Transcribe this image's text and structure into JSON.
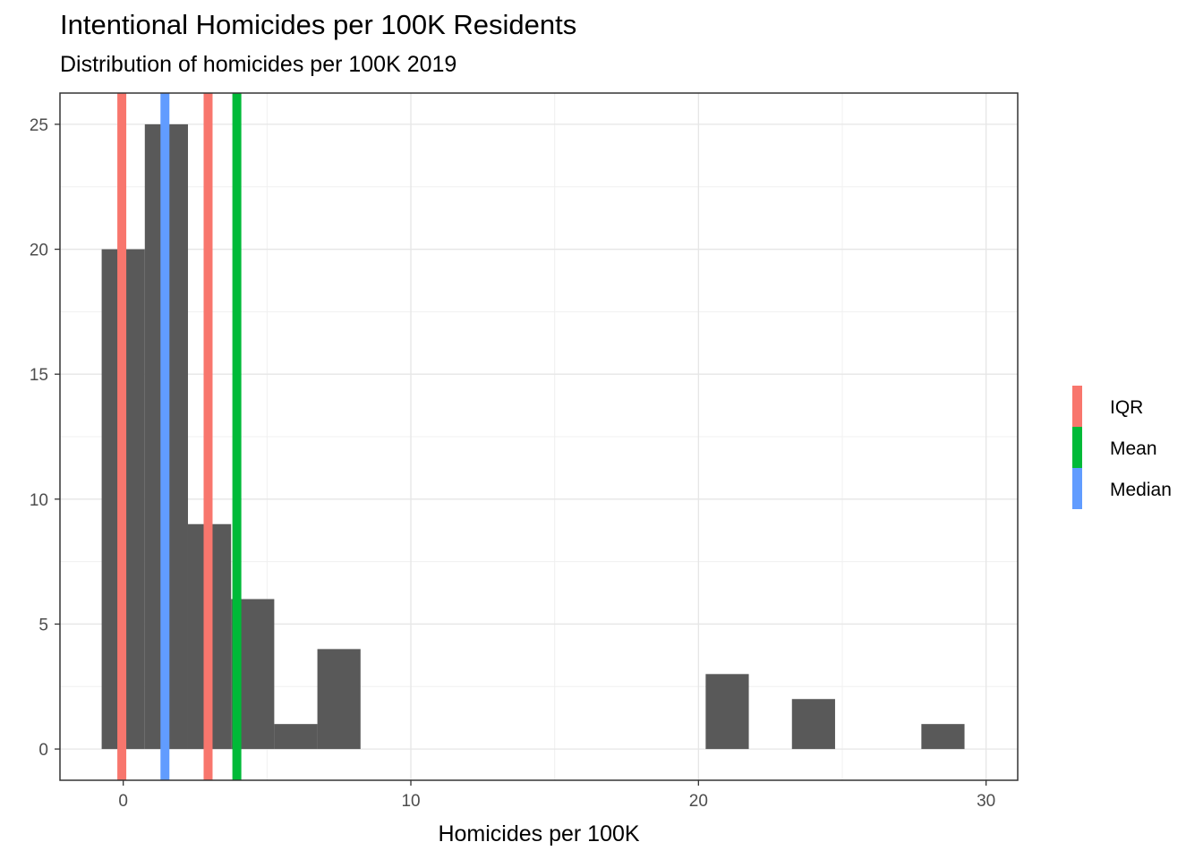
{
  "chart_data": {
    "type": "bar",
    "title": "Intentional Homicides per 100K Residents",
    "subtitle": "Distribution of homicides per 100K 2019",
    "xlabel": "Homicides per 100K",
    "ylabel": "",
    "xlim": [
      -2.2,
      31.1
    ],
    "ylim": [
      -1.25,
      26.25
    ],
    "x_ticks": [
      0,
      10,
      20,
      30
    ],
    "y_ticks": [
      0,
      5,
      10,
      15,
      20,
      25
    ],
    "bin_width": 1.5,
    "bins": [
      {
        "start": -0.75,
        "end": 0.75,
        "count": 20
      },
      {
        "start": 0.75,
        "end": 2.25,
        "count": 25
      },
      {
        "start": 2.25,
        "end": 3.75,
        "count": 9
      },
      {
        "start": 3.75,
        "end": 5.25,
        "count": 6
      },
      {
        "start": 5.25,
        "end": 6.75,
        "count": 1
      },
      {
        "start": 6.75,
        "end": 8.25,
        "count": 4
      },
      {
        "start": 20.25,
        "end": 21.75,
        "count": 3
      },
      {
        "start": 23.25,
        "end": 24.75,
        "count": 2
      },
      {
        "start": 27.75,
        "end": 29.25,
        "count": 1
      }
    ],
    "bar_color": "#595959",
    "reference_lines": [
      {
        "name": "IQR",
        "x": -0.05,
        "color": "#F8766D"
      },
      {
        "name": "IQR",
        "x": 2.95,
        "color": "#F8766D"
      },
      {
        "name": "Median",
        "x": 1.45,
        "color": "#619CFF"
      },
      {
        "name": "Mean",
        "x": 3.95,
        "color": "#00BA38"
      }
    ],
    "legend": {
      "placement": "right",
      "entries": [
        {
          "name": "IQR",
          "color": "#F8766D"
        },
        {
          "name": "Mean",
          "color": "#00BA38"
        },
        {
          "name": "Median",
          "color": "#619CFF"
        }
      ]
    },
    "grid": true
  }
}
